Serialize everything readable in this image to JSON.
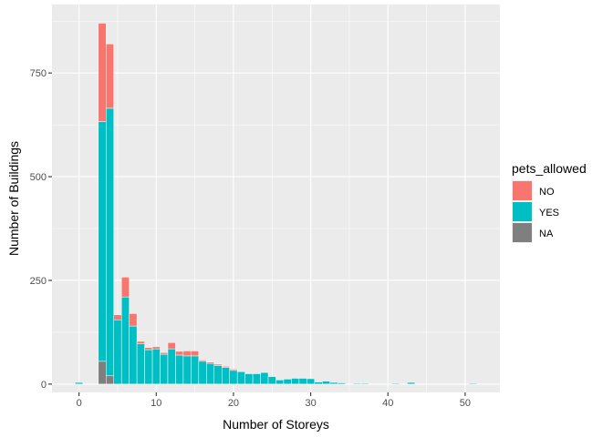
{
  "chart_data": {
    "type": "bar",
    "stacked": true,
    "xlabel": "Number of Storeys",
    "ylabel": "Number of Buildings",
    "xlim": [
      -3.5,
      54.5
    ],
    "ylim": [
      -20,
      915
    ],
    "x_ticks": [
      0,
      10,
      20,
      30,
      40,
      50
    ],
    "y_ticks": [
      0,
      250,
      500,
      750
    ],
    "grid": true,
    "legend": {
      "title": "pets_allowed",
      "position": "right",
      "entries": [
        {
          "label": "NO",
          "color": "#F8766D"
        },
        {
          "label": "YES",
          "color": "#00BFC4"
        },
        {
          "label": "NA",
          "color": "#7F7F7F"
        }
      ]
    },
    "x": [
      0,
      3,
      4,
      5,
      6,
      7,
      8,
      9,
      10,
      11,
      12,
      13,
      14,
      15,
      16,
      17,
      18,
      19,
      20,
      21,
      22,
      23,
      24,
      25,
      26,
      27,
      28,
      29,
      30,
      31,
      32,
      33,
      34,
      36,
      37,
      41,
      43,
      51
    ],
    "series": [
      {
        "name": "NA",
        "color": "#7F7F7F",
        "values": [
          0,
          55,
          20,
          0,
          0,
          0,
          0,
          0,
          0,
          0,
          0,
          0,
          0,
          0,
          0,
          0,
          0,
          0,
          0,
          0,
          0,
          0,
          0,
          0,
          0,
          0,
          0,
          0,
          0,
          0,
          0,
          0,
          0,
          0,
          0,
          0,
          0,
          0
        ]
      },
      {
        "name": "YES",
        "color": "#00BFC4",
        "values": [
          4,
          578,
          645,
          155,
          210,
          140,
          97,
          83,
          85,
          72,
          85,
          70,
          68,
          68,
          55,
          50,
          45,
          40,
          33,
          30,
          25,
          25,
          28,
          18,
          10,
          12,
          14,
          14,
          13,
          5,
          7,
          4,
          3,
          2,
          2,
          2,
          4,
          2
        ]
      },
      {
        "name": "NO",
        "color": "#F8766D",
        "values": [
          0,
          237,
          155,
          12,
          48,
          30,
          6,
          5,
          5,
          4,
          15,
          9,
          12,
          12,
          3,
          3,
          3,
          3,
          3,
          0,
          0,
          0,
          0,
          0,
          0,
          0,
          0,
          0,
          0,
          0,
          0,
          0,
          0,
          0,
          0,
          0,
          0,
          0
        ]
      }
    ]
  }
}
